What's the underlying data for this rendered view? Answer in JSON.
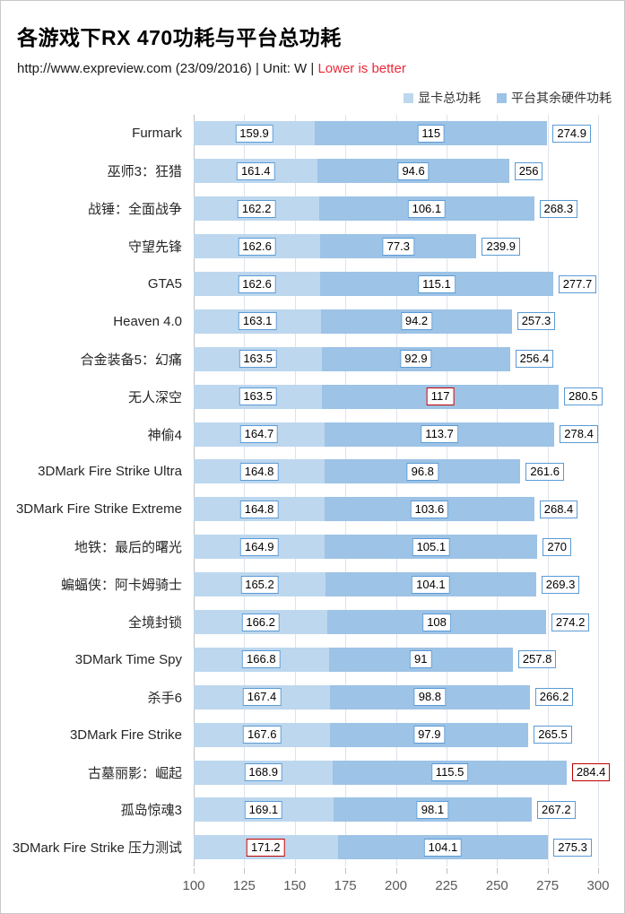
{
  "header": {
    "title": "各游戏下RX 470功耗与平台总功耗",
    "source": "http://www.expreview.com (23/09/2016) | Unit: W |",
    "note": "Lower is better"
  },
  "legend": {
    "items": [
      {
        "label": "显卡总功耗",
        "color": "#bdd7ee"
      },
      {
        "label": "平台其余硬件功耗",
        "color": "#9dc3e6"
      }
    ]
  },
  "colors": {
    "gpu_segment": "#bdd7ee",
    "platform_segment": "#9dc3e6",
    "label_box_border": "#5b9bd5",
    "highlight_border": "#c00000",
    "subtitle_highlight": "#ed2939",
    "gridline": "#dce3eb",
    "axis_line": "#c0c0c0",
    "tick_label": "#595959"
  },
  "chart_data": {
    "type": "bar",
    "orientation": "horizontal",
    "stacked": true,
    "title": "各游戏下RX 470功耗与平台总功耗",
    "unit": "W",
    "xlim": [
      100,
      300
    ],
    "x_ticks": [
      100,
      125,
      150,
      175,
      200,
      225,
      250,
      275,
      300
    ],
    "grid": true,
    "legend_position": "top-right",
    "series_names": [
      "显卡总功耗",
      "平台其余硬件功耗"
    ],
    "rows": [
      {
        "label": "Furmark",
        "gpu": 159.9,
        "platform": 115,
        "total": 274.9
      },
      {
        "label": "巫师3：狂猎",
        "gpu": 161.4,
        "platform": 94.6,
        "total": 256
      },
      {
        "label": "战锤：全面战争",
        "gpu": 162.2,
        "platform": 106.1,
        "total": 268.3
      },
      {
        "label": "守望先锋",
        "gpu": 162.6,
        "platform": 77.3,
        "total": 239.9
      },
      {
        "label": "GTA5",
        "gpu": 162.6,
        "platform": 115.1,
        "total": 277.7
      },
      {
        "label": "Heaven 4.0",
        "gpu": 163.1,
        "platform": 94.2,
        "total": 257.3
      },
      {
        "label": "合金装备5：幻痛",
        "gpu": 163.5,
        "platform": 92.9,
        "total": 256.4
      },
      {
        "label": "无人深空",
        "gpu": 163.5,
        "platform": 117,
        "total": 280.5,
        "platform_red": true
      },
      {
        "label": "神偷4",
        "gpu": 164.7,
        "platform": 113.7,
        "total": 278.4
      },
      {
        "label": "3DMark  Fire Strike Ultra",
        "gpu": 164.8,
        "platform": 96.8,
        "total": 261.6
      },
      {
        "label": "3DMark  Fire Strike Extreme",
        "gpu": 164.8,
        "platform": 103.6,
        "total": 268.4
      },
      {
        "label": "地铁：最后的曙光",
        "gpu": 164.9,
        "platform": 105.1,
        "total": 270
      },
      {
        "label": "蝙蝠侠：阿卡姆骑士",
        "gpu": 165.2,
        "platform": 104.1,
        "total": 269.3
      },
      {
        "label": "全境封锁",
        "gpu": 166.2,
        "platform": 108,
        "total": 274.2
      },
      {
        "label": "3DMark  Time Spy",
        "gpu": 166.8,
        "platform": 91,
        "total": 257.8
      },
      {
        "label": "杀手6",
        "gpu": 167.4,
        "platform": 98.8,
        "total": 266.2
      },
      {
        "label": "3DMark  Fire Strike",
        "gpu": 167.6,
        "platform": 97.9,
        "total": 265.5
      },
      {
        "label": "古墓丽影：崛起",
        "gpu": 168.9,
        "platform": 115.5,
        "total": 284.4,
        "total_red": true
      },
      {
        "label": "孤岛惊魂3",
        "gpu": 169.1,
        "platform": 98.1,
        "total": 267.2
      },
      {
        "label": "3DMark Fire Strike 压力测试",
        "gpu": 171.2,
        "platform": 104.1,
        "total": 275.3,
        "gpu_red": true
      }
    ]
  }
}
